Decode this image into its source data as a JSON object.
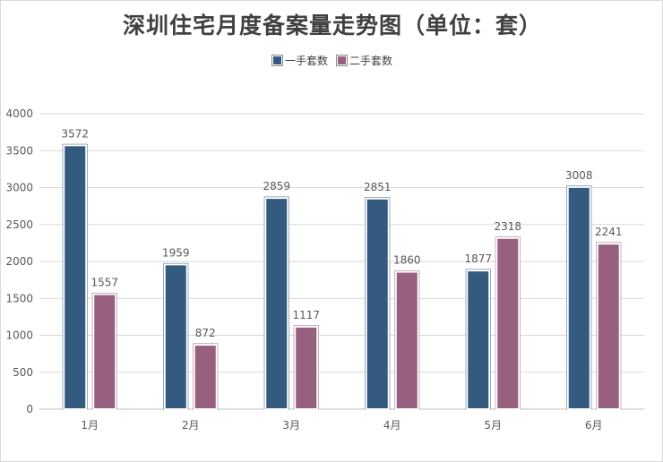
{
  "chart_data": {
    "type": "bar",
    "title": "深圳住宅月度备案量走势图（单位：套）",
    "categories": [
      "1月",
      "2月",
      "3月",
      "4月",
      "5月",
      "6月"
    ],
    "series": [
      {
        "name": "一手套数",
        "values": [
          3572,
          1959,
          2859,
          2851,
          1877,
          3008
        ],
        "color": "#355a80"
      },
      {
        "name": "二手套数",
        "values": [
          1557,
          872,
          1117,
          1860,
          2318,
          2241
        ],
        "color": "#97607f"
      }
    ],
    "ylim": [
      0,
      4000
    ],
    "yticks": [
      0,
      500,
      1000,
      1500,
      2000,
      2500,
      3000,
      3500,
      4000
    ],
    "grid": true,
    "legend_position": "top",
    "xlabel": "",
    "ylabel": ""
  }
}
